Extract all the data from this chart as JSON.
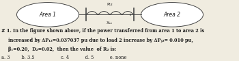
{
  "bg_color": "#f0ece0",
  "text_color": "#1a1a1a",
  "line_color": "#444444",
  "area1_label": "Area 1",
  "area2_label": "Area 2",
  "p12_label": "P₁₂",
  "xde_label": "Xₐₑ",
  "q_line1": "# 1. In the figure shown above, if the power transferred from area 1 to area 2 is",
  "q_line2": "increased by ΔP₁₂=0.037037 pu due to load 2 increase by ΔPⱼ₂= 0.010 pu,",
  "q_line3": "β₁=0.20,  D₂=0.02,  then the value  of R₂ is:",
  "choices": "a. 3        b. 3.5                  c. 4           d. 5           e. none",
  "fig_width": 3.5,
  "fig_height": 0.89,
  "dpi": 100
}
